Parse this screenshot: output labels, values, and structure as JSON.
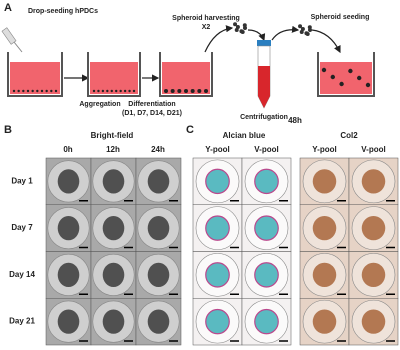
{
  "panel_a": {
    "label": "A",
    "drop_seeding": "Drop-seeding hPDCs",
    "aggregation": "Aggregation",
    "differentiation": "Differentiation",
    "differentiation_days": "(D1, D7, D14, D21)",
    "harvesting": "Spheroid harvesting",
    "harvesting_repeat": "X2",
    "centrifugation": "Centrifugation",
    "seeding": "Spheroid seeding"
  },
  "panel_b": {
    "label": "B",
    "title": "Bright-field",
    "columns": [
      "0h",
      "12h",
      "24h"
    ],
    "rows": [
      "Day 1",
      "Day 7",
      "Day 14",
      "Day 21"
    ]
  },
  "panel_c": {
    "label": "C",
    "time": "48h",
    "groups": [
      {
        "title": "Alcian blue",
        "columns": [
          "Y-pool",
          "V-pool"
        ]
      },
      {
        "title": "Col2",
        "columns": [
          "Y-pool",
          "V-pool"
        ]
      }
    ]
  }
}
